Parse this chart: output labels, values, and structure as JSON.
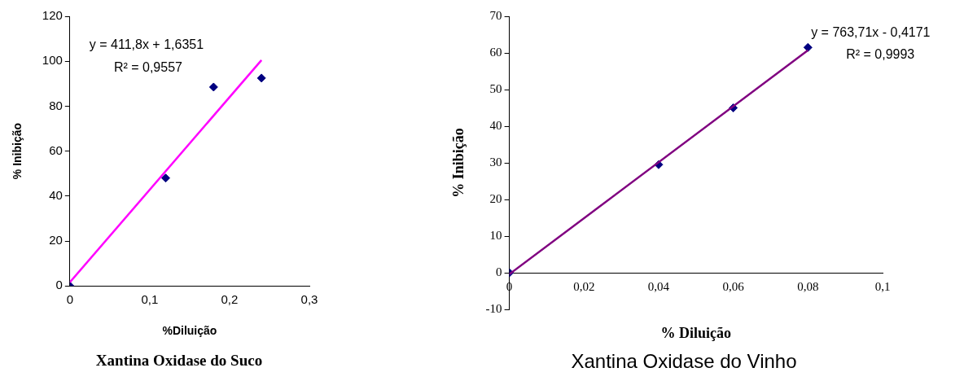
{
  "chart_data": [
    {
      "type": "scatter",
      "title": "Xantina Oxidase do Suco",
      "xlabel": "%Diluição",
      "ylabel": "% Inibição",
      "annotations": [
        "y = 411,8x + 1,6351",
        "R² = 0,9557"
      ],
      "xlim": [
        0,
        0.3
      ],
      "xticks": [
        0,
        {
          "value": 0.1,
          "label": "0,1"
        },
        {
          "value": 0.2,
          "label": "0,2"
        },
        {
          "value": 0.3,
          "label": "0,3"
        }
      ],
      "ylim": [
        0,
        120
      ],
      "yticks": [
        0,
        20,
        40,
        60,
        80,
        100,
        120
      ],
      "grid": false,
      "legend": false,
      "marker": "diamond",
      "series": [
        {
          "type": "line",
          "color": "#ff00ff",
          "x": [
            0,
            0.24
          ],
          "values": [
            1.6,
            100.5
          ],
          "marker": "none"
        },
        {
          "type": "scatter",
          "color": "#000080",
          "x": [
            0,
            0.12,
            0.18,
            0.24
          ],
          "values": [
            0,
            48,
            88.5,
            92.5
          ]
        }
      ]
    },
    {
      "type": "scatter",
      "title": "Xantina Oxidase do Vinho",
      "xlabel": "% Diluição",
      "ylabel": "% Inibição",
      "annotations": [
        "y = 763,71x - 0,4171",
        "R² = 0,9993"
      ],
      "xlim": [
        0,
        0.1
      ],
      "xticks": [
        0,
        {
          "value": 0.02,
          "label": "0,02"
        },
        {
          "value": 0.04,
          "label": "0,04"
        },
        {
          "value": 0.06,
          "label": "0,06"
        },
        {
          "value": 0.08,
          "label": "0,08"
        },
        {
          "value": 0.1,
          "label": "0,1"
        }
      ],
      "ylim": [
        -10,
        70
      ],
      "yticks": [
        -10,
        0,
        10,
        20,
        30,
        40,
        50,
        60,
        70
      ],
      "grid": false,
      "legend": false,
      "marker": "diamond",
      "series": [
        {
          "type": "line",
          "color": "#800080",
          "x": [
            0,
            0.08
          ],
          "values": [
            -0.4,
            60.7
          ],
          "marker": "none"
        },
        {
          "type": "scatter",
          "color": "#000080",
          "x": [
            0,
            0.04,
            0.06,
            0.08
          ],
          "values": [
            0,
            29.5,
            45,
            61.5
          ]
        }
      ]
    }
  ]
}
